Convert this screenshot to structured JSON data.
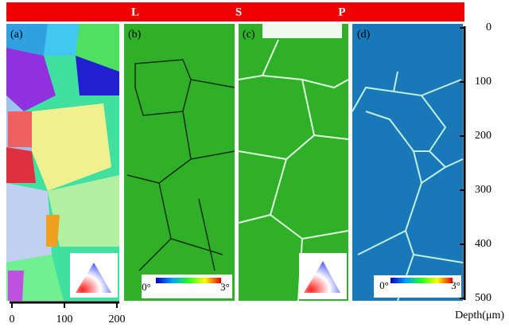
{
  "banner": {
    "letters": [
      "L",
      "S",
      "P"
    ]
  },
  "panels": [
    {
      "label": "(a)"
    },
    {
      "label": "(b)"
    },
    {
      "label": "(c)"
    },
    {
      "label": "(d)"
    }
  ],
  "color_bars": [
    {
      "min_label": "0°",
      "max_label": "3°"
    },
    {
      "min_label": "0°",
      "max_label": "3°"
    }
  ],
  "depth_axis": {
    "label": "Depth(μm)",
    "lim": [
      0,
      500
    ],
    "ticks": [
      0,
      100,
      200,
      300,
      400,
      500
    ]
  },
  "scale_bar": {
    "ticks": [
      0,
      100,
      200
    ]
  }
}
